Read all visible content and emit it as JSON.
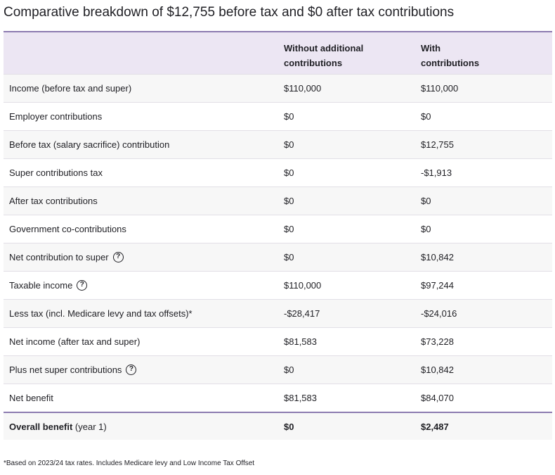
{
  "title": "Comparative breakdown of $12,755 before tax and $0 after tax contributions",
  "columns": {
    "without": [
      "Without additional",
      "contributions"
    ],
    "with": [
      "With",
      "contributions"
    ]
  },
  "rows": [
    {
      "label": "Income (before tax and super)",
      "without": "$110,000",
      "with": "$110,000",
      "help": false
    },
    {
      "label": "Employer contributions",
      "without": "$0",
      "with": "$0",
      "help": false
    },
    {
      "label": "Before tax (salary sacrifice) contribution",
      "without": "$0",
      "with": "$12,755",
      "help": false
    },
    {
      "label": "Super contributions tax",
      "without": "$0",
      "with": "-$1,913",
      "help": false
    },
    {
      "label": "After tax contributions",
      "without": "$0",
      "with": "$0",
      "help": false
    },
    {
      "label": "Government co-contributions",
      "without": "$0",
      "with": "$0",
      "help": false
    },
    {
      "label": "Net contribution to super",
      "without": "$0",
      "with": "$10,842",
      "help": true
    },
    {
      "label": "Taxable income",
      "without": "$110,000",
      "with": "$97,244",
      "help": true
    },
    {
      "label": "Less tax (incl. Medicare levy and tax offsets)*",
      "without": "-$28,417",
      "with": "-$24,016",
      "help": false
    },
    {
      "label": "Net income (after tax and super)",
      "without": "$81,583",
      "with": "$73,228",
      "help": false
    },
    {
      "label": "Plus net super contributions",
      "without": "$0",
      "with": "$10,842",
      "help": true
    },
    {
      "label": "Net benefit",
      "without": "$81,583",
      "with": "$84,070",
      "help": false
    }
  ],
  "total": {
    "label_bold": "Overall benefit",
    "label_suffix": " (year 1)",
    "without": "$0",
    "with": "$2,487"
  },
  "help_icon": "question-circle-icon",
  "help_glyph": "?",
  "footnote": "*Based on 2023/24 tax rates. Includes Medicare levy and Low Income Tax Offset",
  "colors": {
    "header_bg": "#ece6f3",
    "accent_border": "#8c7bb0",
    "row_shade": "#f7f7f7"
  }
}
